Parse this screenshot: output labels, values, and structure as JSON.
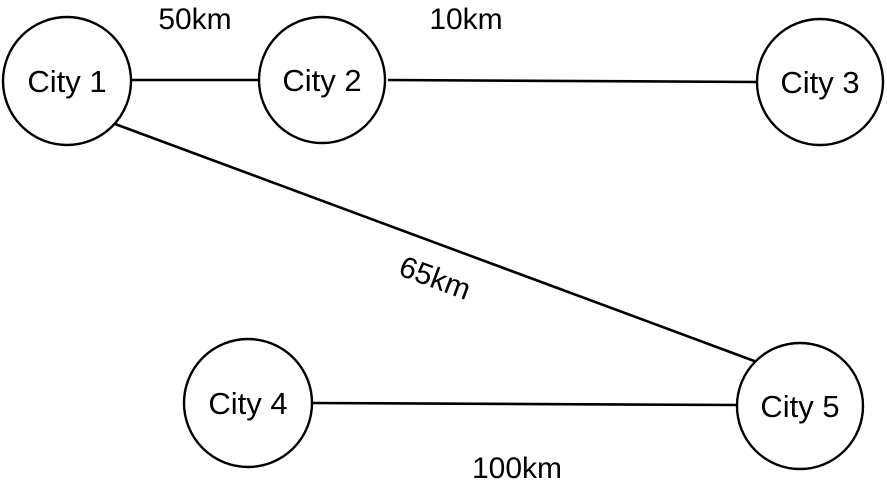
{
  "nodes": [
    {
      "id": "city1",
      "label": "City 1"
    },
    {
      "id": "city2",
      "label": "City 2"
    },
    {
      "id": "city3",
      "label": "City 3"
    },
    {
      "id": "city4",
      "label": "City 4"
    },
    {
      "id": "city5",
      "label": "City 5"
    }
  ],
  "edges": [
    {
      "from": "city1",
      "to": "city2",
      "label": "50km"
    },
    {
      "from": "city2",
      "to": "city3",
      "label": "10km"
    },
    {
      "from": "city1",
      "to": "city5",
      "label": "65km"
    },
    {
      "from": "city4",
      "to": "city5",
      "label": "100km"
    }
  ],
  "colors": {
    "stroke": "#000000",
    "fill": "#ffffff",
    "text": "#000000"
  }
}
